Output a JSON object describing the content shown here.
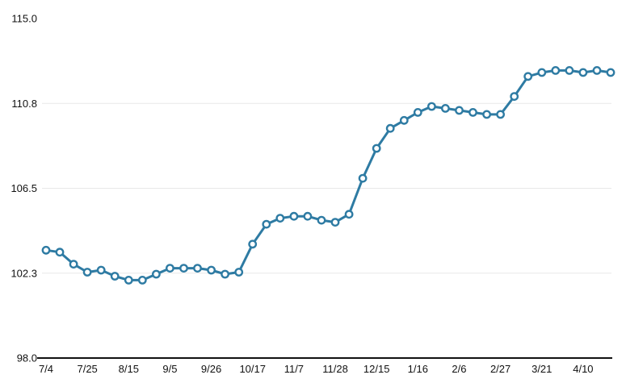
{
  "chart_data": {
    "type": "line",
    "title": "",
    "xlabel": "",
    "ylabel": "",
    "legend": "none",
    "grid": "horizontal",
    "marker": "circle-open",
    "ylim": [
      98.0,
      115.0
    ],
    "y_ticks": [
      98.0,
      102.25,
      106.5,
      110.75,
      115.0
    ],
    "y_tick_labels": [
      "98.0",
      "102.3",
      "106.5",
      "110.8",
      "115.0"
    ],
    "gridline_ticks": [
      102.25,
      106.5,
      110.75
    ],
    "x_labels": [
      "7/4",
      "",
      "",
      "7/25",
      "",
      "",
      "8/15",
      "",
      "",
      "9/5",
      "",
      "",
      "9/26",
      "",
      "",
      "10/17",
      "",
      "",
      "11/7",
      "",
      "",
      "11/28",
      "",
      "",
      "12/15",
      "",
      "",
      "1/16",
      "",
      "",
      "2/6",
      "",
      "",
      "2/27",
      "",
      "",
      "3/21",
      "",
      "",
      "4/10",
      "",
      ""
    ],
    "values": [
      103.4,
      103.3,
      102.7,
      102.3,
      102.4,
      102.1,
      101.9,
      101.9,
      102.2,
      102.5,
      102.5,
      102.5,
      102.4,
      102.2,
      102.3,
      103.7,
      104.7,
      105.0,
      105.1,
      105.1,
      104.9,
      104.8,
      105.2,
      107.0,
      108.5,
      109.5,
      109.9,
      110.3,
      110.6,
      110.5,
      110.4,
      110.3,
      110.2,
      110.2,
      111.1,
      112.1,
      112.3,
      112.4,
      112.4,
      112.3,
      112.4,
      112.3
    ],
    "colors": {
      "line": "#2e7ba3",
      "marker_fill": "#ffffff",
      "grid": "#e8e8e8",
      "axis": "#111111",
      "text": "#111111"
    }
  }
}
